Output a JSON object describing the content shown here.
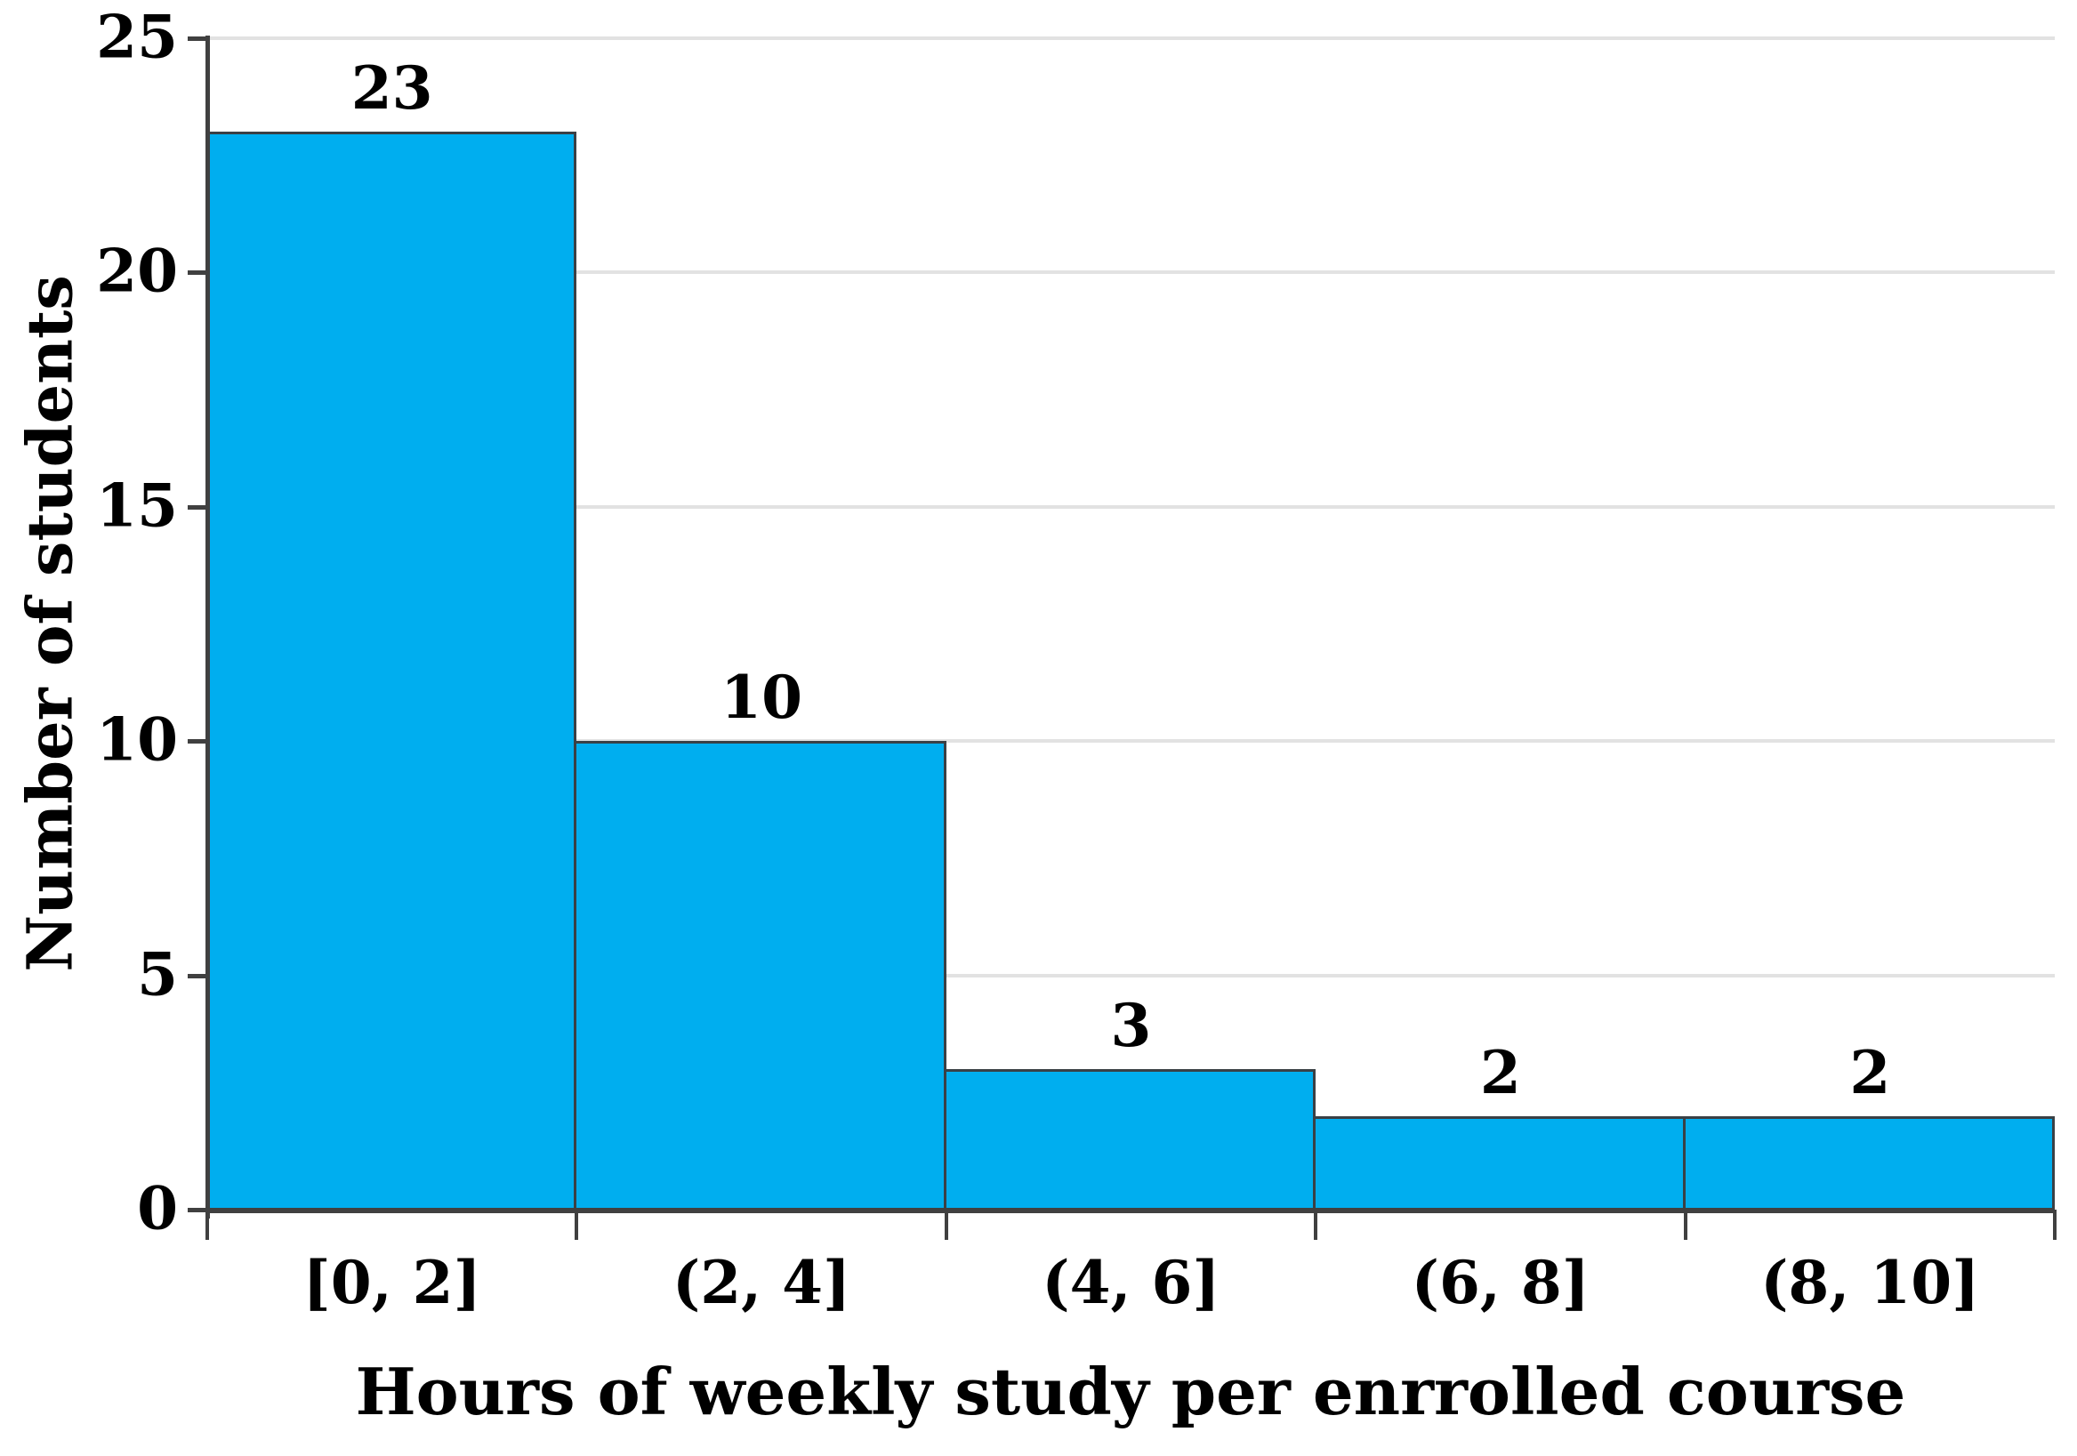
{
  "chart_data": {
    "type": "bar",
    "subtype": "histogram",
    "title": "",
    "xlabel": "Hours of weekly study per enrrolled course",
    "ylabel": "Number of students",
    "categories": [
      "[0, 2]",
      "(2, 4]",
      "(4, 6]",
      "(6, 8]",
      "(8, 10]"
    ],
    "values": [
      23,
      10,
      3,
      2,
      2
    ],
    "bar_labels": [
      "23",
      "10",
      "3",
      "2",
      "2"
    ],
    "ylim": [
      0,
      25
    ],
    "yticks": [
      0,
      5,
      10,
      15,
      20,
      25
    ],
    "ytick_labels": [
      "0",
      "5",
      "10",
      "15",
      "20",
      "25"
    ],
    "grid": "horizontal",
    "legend": "none",
    "bars_contiguous": true,
    "colors": {
      "bar_fill": "#00AEEF",
      "bar_border": "#3a4045",
      "axis": "#404040",
      "gridline": "#e2e2e2",
      "text": "#000000",
      "background": "#ffffff"
    }
  }
}
